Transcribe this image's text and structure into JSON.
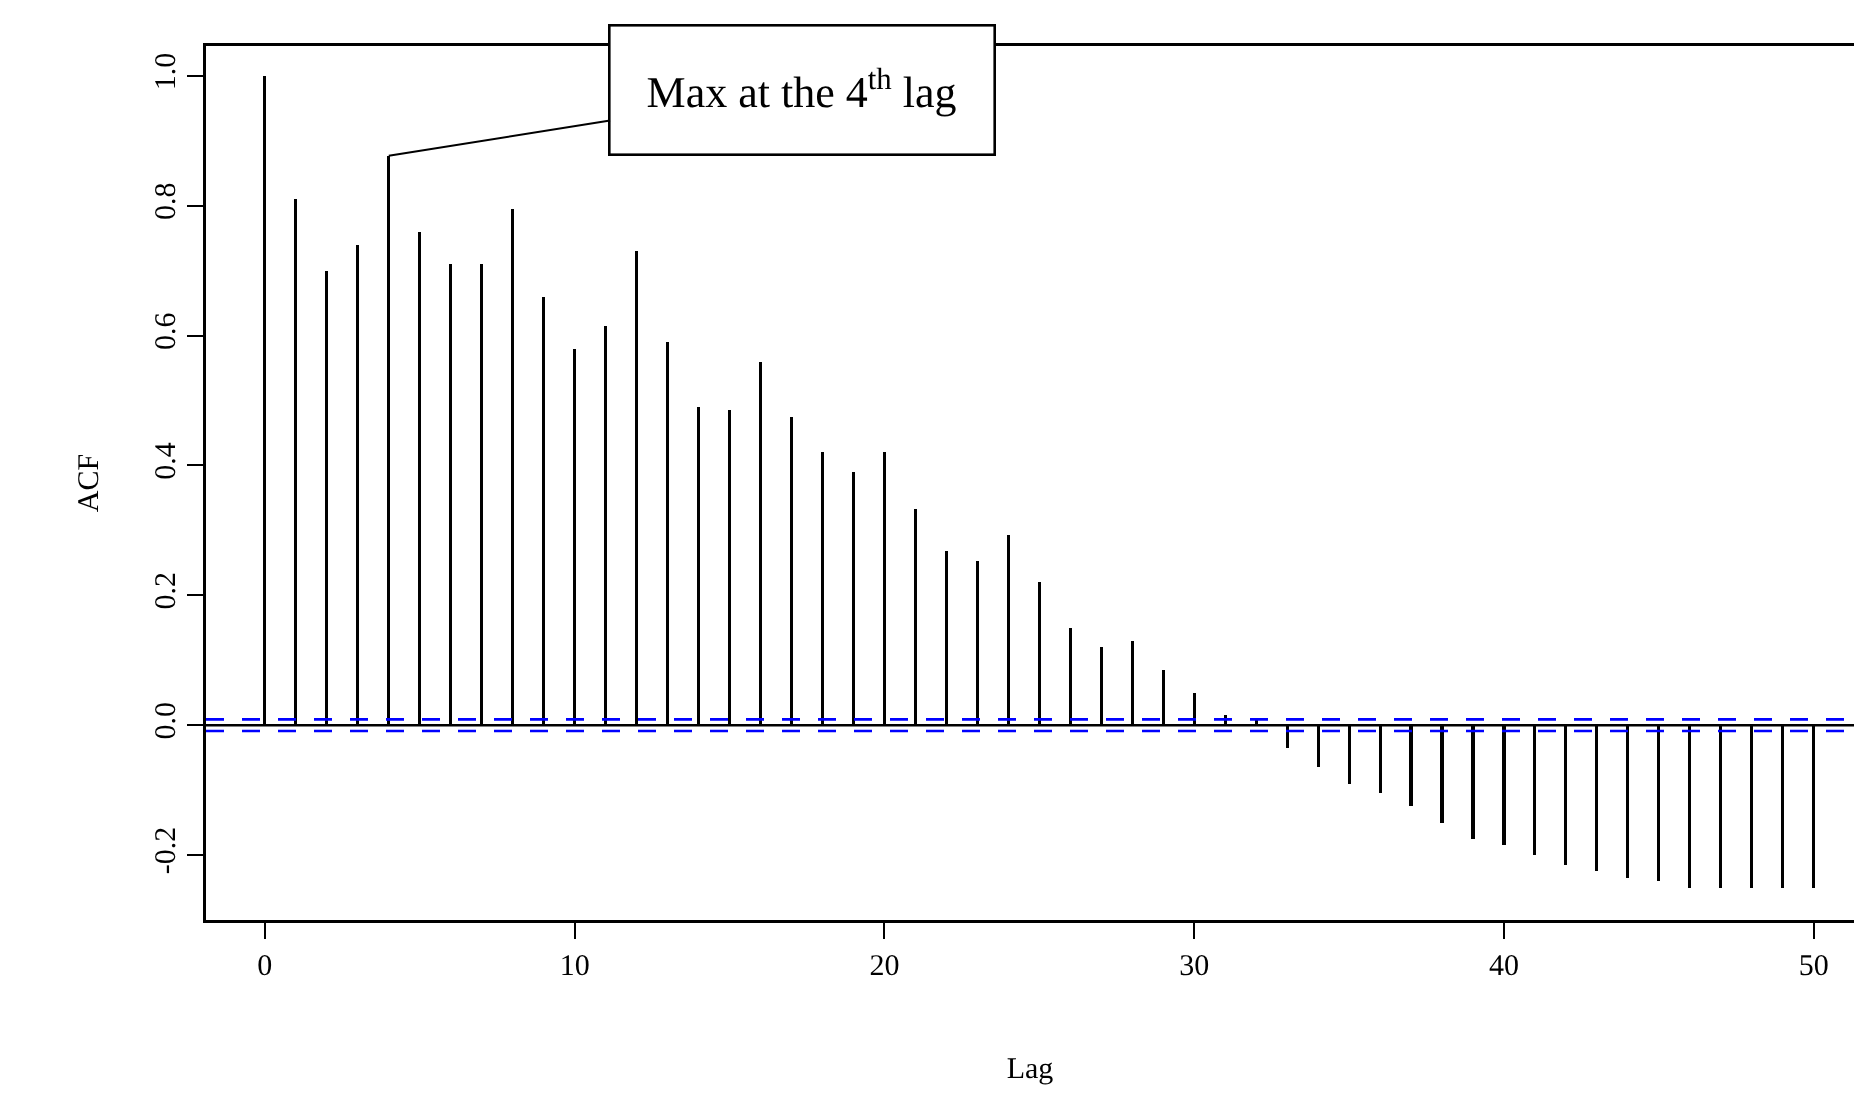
{
  "chart_data": {
    "type": "bar",
    "xlabel": "Lag",
    "ylabel": "ACF",
    "x": [
      0,
      1,
      2,
      3,
      4,
      5,
      6,
      7,
      8,
      9,
      10,
      11,
      12,
      13,
      14,
      15,
      16,
      17,
      18,
      19,
      20,
      21,
      22,
      23,
      24,
      25,
      26,
      27,
      28,
      29,
      30,
      31,
      32,
      33,
      34,
      35,
      36,
      37,
      38,
      39,
      40,
      41,
      42,
      43,
      44,
      45,
      46,
      47,
      48,
      49,
      50
    ],
    "values": [
      1.0,
      0.81,
      0.7,
      0.74,
      0.877,
      0.76,
      0.71,
      0.71,
      0.795,
      0.66,
      0.58,
      0.615,
      0.73,
      0.59,
      0.49,
      0.485,
      0.56,
      0.475,
      0.42,
      0.39,
      0.42,
      0.333,
      0.268,
      0.253,
      0.293,
      0.22,
      0.15,
      0.12,
      0.13,
      0.085,
      0.05,
      0.015,
      0.008,
      -0.035,
      -0.065,
      -0.09,
      -0.105,
      -0.125,
      -0.15,
      -0.175,
      -0.185,
      -0.2,
      -0.215,
      -0.225,
      -0.235,
      -0.24,
      -0.25,
      -0.25,
      -0.25,
      -0.25,
      -0.25
    ],
    "color": "#000000",
    "xlim": [
      -1.9,
      51.3
    ],
    "xticks": [
      0,
      10,
      20,
      30,
      40,
      50
    ],
    "ylim": [
      -0.3,
      1.046
    ],
    "yticks": [
      {
        "value": -0.2,
        "label": "-0.2"
      },
      {
        "value": 0,
        "label": "0.0"
      },
      {
        "value": 0.2,
        "label": "0.2"
      },
      {
        "value": 0.4,
        "label": "0.4"
      },
      {
        "value": 0.6,
        "label": "0.6"
      },
      {
        "value": 0.8,
        "label": "0.8"
      },
      {
        "value": 1,
        "label": "1.0"
      }
    ],
    "ref_lines": [
      {
        "axis": "y",
        "value": 0,
        "color": "#000000",
        "line_style": "solid"
      },
      {
        "axis": "y",
        "value": 0.009,
        "color": "#0000ff",
        "line_style": "dashed"
      },
      {
        "axis": "y",
        "value": -0.009,
        "color": "#0000ff",
        "line_style": "dashed"
      }
    ],
    "annotations": [
      {
        "text": "Max at the 4$^{th}$ lag",
        "x": 4,
        "y": 0.877
      }
    ],
    "grid": false,
    "legend": false
  }
}
